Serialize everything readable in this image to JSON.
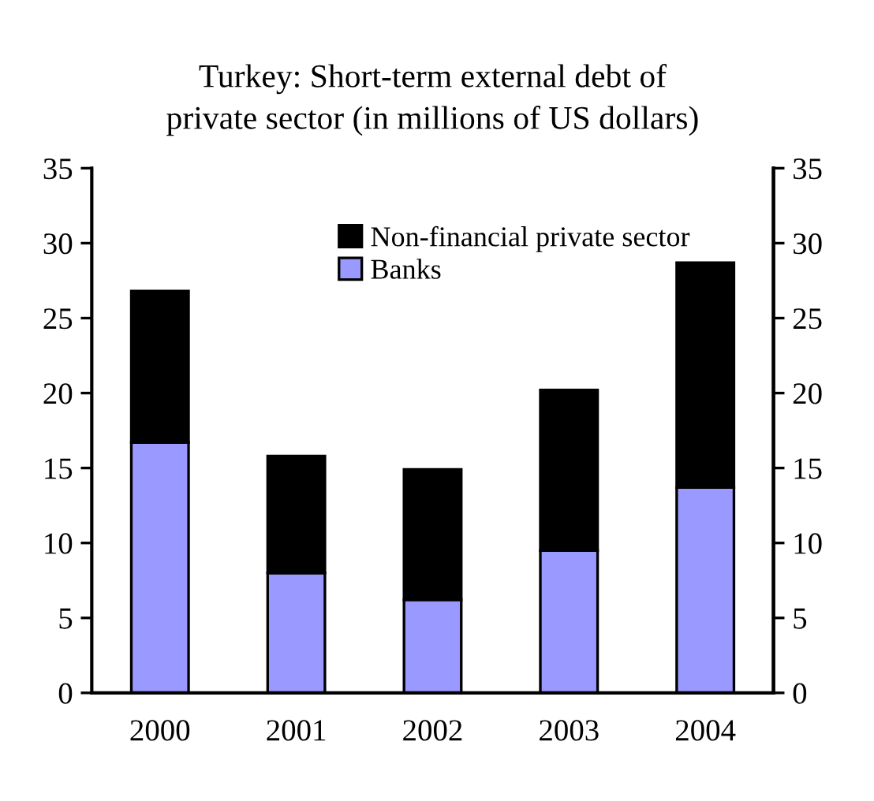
{
  "chart_data": {
    "type": "bar",
    "title": "Turkey: Short-term external debt of\nprivate sector (in millions of US dollars)",
    "categories": [
      "2000",
      "2001",
      "2002",
      "2003",
      "2004"
    ],
    "series": [
      {
        "name": "Banks",
        "color": "#9999ff",
        "values": [
          16.7,
          8.0,
          6.2,
          9.5,
          13.7
        ]
      },
      {
        "name": "Non-financial private sector",
        "color": "#000000",
        "values": [
          10.1,
          7.8,
          8.7,
          10.7,
          15.0
        ]
      }
    ],
    "stacked": true,
    "ylim": [
      0,
      35
    ],
    "yticks": [
      0,
      5,
      10,
      15,
      20,
      25,
      30,
      35
    ],
    "y2lim": [
      0,
      35
    ],
    "y2ticks": [
      0,
      5,
      10,
      15,
      20,
      25,
      30,
      35
    ],
    "grid": false,
    "legend": "top"
  }
}
